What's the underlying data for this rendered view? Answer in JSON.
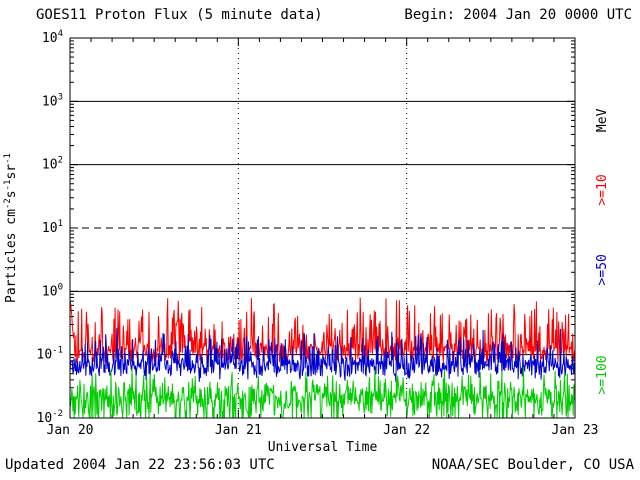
{
  "header": {
    "title": "GOES11 Proton Flux (5 minute data)",
    "begin": "Begin: 2004 Jan 20 0000 UTC"
  },
  "footer": {
    "updated": "Updated 2004 Jan 22 23:56:03 UTC",
    "source": "NOAA/SEC Boulder, CO USA"
  },
  "chart_data": {
    "type": "line",
    "title": "GOES11 Proton Flux (5 minute data)",
    "xlabel": "Universal Time",
    "ylabel_parts": [
      {
        "t": "Particles  cm"
      },
      {
        "t": "-2",
        "sup": true
      },
      {
        "t": "s"
      },
      {
        "t": "-1",
        "sup": true
      },
      {
        "t": "sr"
      },
      {
        "t": "-1",
        "sup": true
      }
    ],
    "x_tick_labels": [
      "Jan 20",
      "Jan 21",
      "Jan 22",
      "Jan 23"
    ],
    "x_range_days": 3,
    "points_per_day": 288,
    "y_tick_exponents": [
      4,
      3,
      2,
      1,
      0,
      -1,
      -2
    ],
    "ylim_log10": [
      -2,
      4
    ],
    "grid": {
      "hlines": [
        {
          "log10": 3,
          "style": "solid"
        },
        {
          "log10": 2,
          "style": "solid"
        },
        {
          "log10": 1,
          "style": "dashed"
        },
        {
          "log10": 0,
          "style": "solid"
        },
        {
          "log10": -1,
          "style": "solid"
        }
      ],
      "vline_days": [
        1,
        2
      ]
    },
    "right_labels": [
      {
        "text": "MeV",
        "color": "#000000",
        "center_log10": 2.7
      },
      {
        "text": ">=10",
        "color": "#ff0000",
        "center_log10": 1.6
      },
      {
        "text": ">=50",
        "color": "#0000cc",
        "center_log10": 0.34
      },
      {
        "text": ">=100",
        "color": "#00cc00",
        "center_log10": -1.32
      }
    ],
    "series": [
      {
        "name": ">=10 MeV",
        "color": "#ff0000",
        "base_log10": -1.0,
        "jitter": 0.13,
        "spike_amp": 0.8,
        "spike_pow": 4,
        "neg_amp": 0,
        "neg_pow": 4,
        "seed": 11,
        "start_event_peak": -0.12,
        "typical_log10_range": [
          -1.1,
          -0.4
        ]
      },
      {
        "name": ">=50 MeV",
        "color": "#0000cc",
        "base_log10": -1.2,
        "jitter": 0.12,
        "spike_amp": 0.55,
        "spike_pow": 4,
        "neg_amp": 0.15,
        "neg_pow": 4,
        "seed": 23,
        "typical_log10_range": [
          -1.35,
          -0.7
        ]
      },
      {
        "name": ">=100 MeV",
        "color": "#00cc00",
        "base_log10": -1.65,
        "jitter": 0.16,
        "spike_amp": 0.35,
        "spike_pow": 4,
        "neg_amp": 0.5,
        "neg_pow": 3,
        "seed": 37,
        "typical_log10_range": [
          -2.0,
          -1.2
        ]
      }
    ]
  }
}
